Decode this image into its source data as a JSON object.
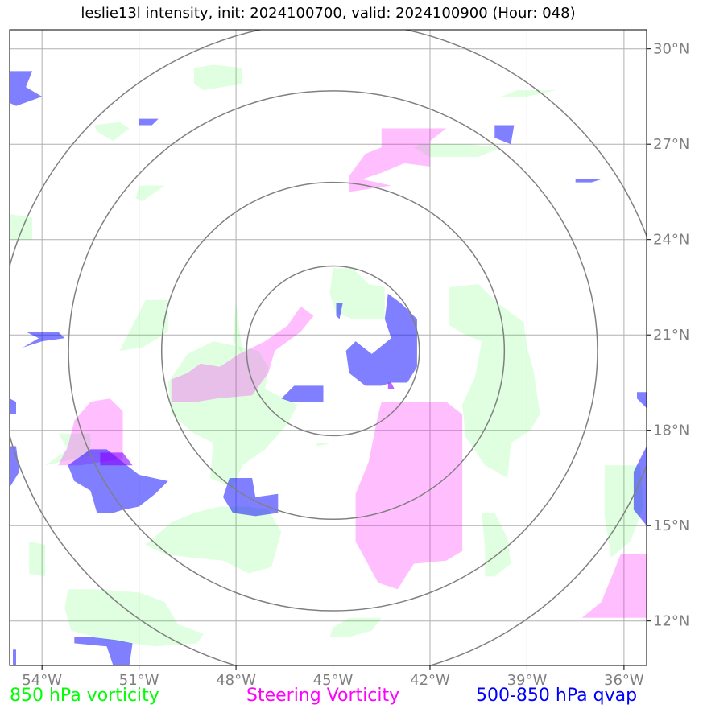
{
  "title": "leslie13l intensity, init: 2024100700, valid: 2024100900 (Hour: 048)",
  "colors": {
    "vorticity_850": "#00ff00",
    "steering_vorticity": "#ff00ff",
    "qvap_500_850": "#0000ff",
    "grid": "#b0b0b0",
    "range_rings": "#808080",
    "tick_labels": "#808080"
  },
  "map": {
    "lon_min": -55.0,
    "lon_max": -35.3,
    "lat_min": 10.6,
    "lat_max": 30.6,
    "storm_center": {
      "lon": -45.0,
      "lat": 20.5
    },
    "range_ring_radii_deg": [
      2.67,
      5.3,
      8.18,
      10.35
    ],
    "x_ticks": [
      {
        "lon": -54,
        "label": "54°W"
      },
      {
        "lon": -51,
        "label": "51°W"
      },
      {
        "lon": -48,
        "label": "48°W"
      },
      {
        "lon": -45,
        "label": "45°W"
      },
      {
        "lon": -42,
        "label": "42°W"
      },
      {
        "lon": -39,
        "label": "39°W"
      },
      {
        "lon": -36,
        "label": "36°W"
      }
    ],
    "y_ticks": [
      {
        "lat": 30,
        "label": "30°N"
      },
      {
        "lat": 27,
        "label": "27°N"
      },
      {
        "lat": 24,
        "label": "24°N"
      },
      {
        "lat": 21,
        "label": "21°N"
      },
      {
        "lat": 18,
        "label": "18°N"
      },
      {
        "lat": 15,
        "label": "15°N"
      },
      {
        "lat": 12,
        "label": "12°N"
      }
    ]
  },
  "fields": {
    "vorticity_850": [
      [
        [
          -49.3,
          29.4
        ],
        [
          -48.7,
          29.5
        ],
        [
          -47.8,
          29.4
        ],
        [
          -47.8,
          28.9
        ],
        [
          -49.0,
          28.7
        ],
        [
          -49.3,
          28.9
        ]
      ],
      [
        [
          -39.3,
          28.7
        ],
        [
          -38.1,
          28.7
        ],
        [
          -39.0,
          28.5
        ],
        [
          -39.8,
          28.5
        ]
      ],
      [
        [
          -52.4,
          27.6
        ],
        [
          -51.6,
          27.7
        ],
        [
          -51.3,
          27.5
        ],
        [
          -51.8,
          27.1
        ],
        [
          -52.3,
          27.4
        ]
      ],
      [
        [
          -42.3,
          27.0
        ],
        [
          -40.8,
          27.0
        ],
        [
          -39.8,
          26.9
        ],
        [
          -40.5,
          26.6
        ],
        [
          -42.0,
          26.6
        ],
        [
          -42.5,
          26.9
        ]
      ],
      [
        [
          -51.0,
          25.7
        ],
        [
          -50.2,
          25.7
        ],
        [
          -50.9,
          25.2
        ],
        [
          -51.1,
          25.3
        ]
      ],
      [
        [
          -55.0,
          24.8
        ],
        [
          -54.3,
          24.7
        ],
        [
          -54.3,
          24.0
        ],
        [
          -55.0,
          24.0
        ]
      ],
      [
        [
          -45.0,
          23.1
        ],
        [
          -44.4,
          23.1
        ],
        [
          -43.9,
          22.6
        ],
        [
          -43.4,
          22.5
        ],
        [
          -43.4,
          21.5
        ],
        [
          -44.4,
          21.5
        ],
        [
          -44.9,
          21.7
        ],
        [
          -45.1,
          22.3
        ]
      ],
      [
        [
          -41.4,
          22.5
        ],
        [
          -40.5,
          22.6
        ],
        [
          -39.9,
          22.0
        ],
        [
          -39.1,
          21.4
        ],
        [
          -39.0,
          20.6
        ],
        [
          -38.8,
          19.9
        ],
        [
          -38.6,
          18.5
        ],
        [
          -38.9,
          18.0
        ],
        [
          -39.5,
          17.6
        ],
        [
          -39.6,
          16.5
        ],
        [
          -40.3,
          16.9
        ],
        [
          -40.9,
          17.8
        ],
        [
          -41.0,
          18.8
        ],
        [
          -40.6,
          19.7
        ],
        [
          -40.4,
          20.8
        ],
        [
          -40.9,
          21.0
        ],
        [
          -41.4,
          21.3
        ]
      ],
      [
        [
          -50.8,
          22.1
        ],
        [
          -50.1,
          22.1
        ],
        [
          -50.1,
          21.1
        ],
        [
          -50.9,
          20.6
        ],
        [
          -51.6,
          20.5
        ],
        [
          -51.3,
          21.1
        ]
      ],
      [
        [
          -48.0,
          22.1
        ],
        [
          -47.8,
          20.4
        ],
        [
          -48.1,
          20.8
        ]
      ],
      [
        [
          -49.5,
          20.4
        ],
        [
          -48.7,
          20.8
        ],
        [
          -47.3,
          20.5
        ],
        [
          -47.0,
          20.0
        ],
        [
          -47.1,
          19.3
        ],
        [
          -46.1,
          18.8
        ],
        [
          -46.4,
          18.2
        ],
        [
          -47.1,
          17.4
        ],
        [
          -47.8,
          16.9
        ],
        [
          -48.1,
          16.2
        ],
        [
          -48.8,
          16.5
        ],
        [
          -48.7,
          17.6
        ],
        [
          -49.3,
          17.9
        ],
        [
          -50.0,
          18.5
        ],
        [
          -50.1,
          19.5
        ]
      ],
      [
        [
          -45.5,
          17.6
        ],
        [
          -45.0,
          17.6
        ],
        [
          -45.5,
          17.5
        ]
      ],
      [
        [
          -53.5,
          17.9
        ],
        [
          -52.5,
          17.9
        ],
        [
          -52.5,
          17.2
        ],
        [
          -53.9,
          16.9
        ],
        [
          -53.2,
          17.4
        ]
      ],
      [
        [
          -36.6,
          16.9
        ],
        [
          -35.5,
          16.9
        ],
        [
          -35.4,
          15.6
        ],
        [
          -35.8,
          14.5
        ],
        [
          -36.4,
          14.0
        ],
        [
          -36.6,
          15.3
        ],
        [
          -36.6,
          16.0
        ]
      ],
      [
        [
          -48.5,
          15.6
        ],
        [
          -47.6,
          15.6
        ],
        [
          -47.0,
          15.5
        ],
        [
          -46.6,
          14.8
        ],
        [
          -46.9,
          13.7
        ],
        [
          -47.6,
          13.5
        ],
        [
          -48.4,
          13.9
        ],
        [
          -49.4,
          14.0
        ],
        [
          -50.2,
          14.1
        ],
        [
          -50.8,
          14.4
        ],
        [
          -50.0,
          15.1
        ],
        [
          -49.3,
          15.4
        ]
      ],
      [
        [
          -40.4,
          15.4
        ],
        [
          -40.0,
          15.4
        ],
        [
          -39.6,
          14.6
        ],
        [
          -39.5,
          13.8
        ],
        [
          -40.0,
          13.4
        ],
        [
          -40.3,
          13.4
        ],
        [
          -40.3,
          14.3
        ]
      ],
      [
        [
          -54.4,
          14.5
        ],
        [
          -53.9,
          14.4
        ],
        [
          -53.9,
          13.4
        ],
        [
          -54.4,
          13.5
        ]
      ],
      [
        [
          -53.2,
          13.0
        ],
        [
          -52.4,
          13.0
        ],
        [
          -51.0,
          12.9
        ],
        [
          -50.2,
          12.6
        ],
        [
          -49.8,
          11.9
        ],
        [
          -49.0,
          11.6
        ],
        [
          -49.2,
          11.3
        ],
        [
          -50.5,
          11.2
        ],
        [
          -52.0,
          11.4
        ],
        [
          -53.1,
          11.7
        ],
        [
          -53.3,
          12.4
        ]
      ],
      [
        [
          -44.5,
          12.1
        ],
        [
          -43.5,
          12.1
        ],
        [
          -43.8,
          11.7
        ],
        [
          -44.5,
          11.5
        ],
        [
          -45.1,
          11.5
        ],
        [
          -45.0,
          11.8
        ]
      ]
    ],
    "steering_vorticity": [
      [
        [
          -43.5,
          27.5
        ],
        [
          -41.5,
          27.5
        ],
        [
          -42.0,
          27.1
        ],
        [
          -42.0,
          26.3
        ],
        [
          -42.8,
          26.4
        ],
        [
          -43.5,
          26.1
        ],
        [
          -44.1,
          25.9
        ],
        [
          -43.2,
          25.7
        ],
        [
          -44.5,
          25.5
        ],
        [
          -44.5,
          26.0
        ],
        [
          -44.0,
          26.7
        ],
        [
          -43.5,
          26.9
        ]
      ],
      [
        [
          -47.9,
          20.4
        ],
        [
          -47.1,
          20.8
        ],
        [
          -46.4,
          21.3
        ],
        [
          -46.0,
          21.9
        ],
        [
          -45.6,
          21.6
        ],
        [
          -46.0,
          21.1
        ],
        [
          -46.8,
          20.5
        ],
        [
          -47.0,
          19.8
        ],
        [
          -47.5,
          19.1
        ],
        [
          -48.6,
          19.0
        ],
        [
          -49.2,
          18.9
        ],
        [
          -50.0,
          18.9
        ],
        [
          -50.0,
          19.6
        ],
        [
          -49.5,
          19.8
        ],
        [
          -49.1,
          20.1
        ],
        [
          -48.5,
          20.0
        ]
      ],
      [
        [
          -52.5,
          18.9
        ],
        [
          -51.9,
          19.0
        ],
        [
          -51.5,
          18.6
        ],
        [
          -51.5,
          17.1
        ],
        [
          -52.2,
          17.0
        ],
        [
          -52.8,
          16.9
        ],
        [
          -53.5,
          16.9
        ],
        [
          -53.2,
          17.5
        ],
        [
          -53.0,
          18.3
        ]
      ],
      [
        [
          -43.5,
          18.9
        ],
        [
          -41.5,
          18.9
        ],
        [
          -41.0,
          18.5
        ],
        [
          -41.0,
          14.2
        ],
        [
          -41.5,
          13.9
        ],
        [
          -42.5,
          13.8
        ],
        [
          -43.0,
          13.0
        ],
        [
          -43.6,
          13.2
        ],
        [
          -44.3,
          14.5
        ],
        [
          -44.3,
          16.0
        ],
        [
          -43.9,
          17.0
        ],
        [
          -43.6,
          18.5
        ]
      ],
      [
        [
          -36.1,
          14.1
        ],
        [
          -35.3,
          14.1
        ],
        [
          -35.3,
          12.1
        ],
        [
          -36.1,
          12.1
        ],
        [
          -37.3,
          12.1
        ],
        [
          -36.7,
          12.6
        ]
      ]
    ],
    "qvap_500_850": [
      [
        [
          -55.0,
          29.3
        ],
        [
          -54.3,
          29.3
        ],
        [
          -54.5,
          28.8
        ],
        [
          -54.0,
          28.5
        ],
        [
          -54.8,
          28.2
        ],
        [
          -55.0,
          28.3
        ]
      ],
      [
        [
          -51.0,
          27.8
        ],
        [
          -50.4,
          27.8
        ],
        [
          -50.6,
          27.6
        ],
        [
          -51.0,
          27.6
        ]
      ],
      [
        [
          -40.0,
          27.6
        ],
        [
          -39.4,
          27.6
        ],
        [
          -39.5,
          27.0
        ],
        [
          -40.0,
          27.2
        ]
      ],
      [
        [
          -37.5,
          25.9
        ],
        [
          -36.7,
          25.9
        ],
        [
          -37.0,
          25.8
        ],
        [
          -37.5,
          25.8
        ]
      ],
      [
        [
          -44.9,
          22.0
        ],
        [
          -44.7,
          22.0
        ],
        [
          -44.8,
          21.5
        ],
        [
          -44.9,
          21.6
        ]
      ],
      [
        [
          -54.5,
          21.1
        ],
        [
          -53.5,
          21.1
        ],
        [
          -53.3,
          20.9
        ],
        [
          -54.0,
          20.8
        ],
        [
          -54.6,
          20.6
        ],
        [
          -54.1,
          20.9
        ]
      ],
      [
        [
          -43.3,
          22.3
        ],
        [
          -42.9,
          22.0
        ],
        [
          -42.4,
          21.5
        ],
        [
          -42.4,
          20.0
        ],
        [
          -42.7,
          19.5
        ],
        [
          -43.2,
          19.5
        ],
        [
          -43.5,
          19.4
        ],
        [
          -44.0,
          19.4
        ],
        [
          -44.5,
          19.8
        ],
        [
          -44.6,
          20.5
        ],
        [
          -44.3,
          20.8
        ],
        [
          -43.8,
          20.4
        ],
        [
          -43.2,
          20.9
        ],
        [
          -43.4,
          21.5
        ]
      ],
      [
        [
          -46.2,
          19.4
        ],
        [
          -45.3,
          19.4
        ],
        [
          -45.3,
          18.9
        ],
        [
          -46.3,
          18.9
        ],
        [
          -46.6,
          19.0
        ]
      ],
      [
        [
          -55.0,
          19.0
        ],
        [
          -54.8,
          18.9
        ],
        [
          -54.8,
          18.5
        ],
        [
          -55.0,
          18.5
        ]
      ],
      [
        [
          -35.6,
          19.2
        ],
        [
          -35.3,
          19.2
        ],
        [
          -35.3,
          18.7
        ],
        [
          -35.6,
          19.0
        ]
      ],
      [
        [
          -52.5,
          17.4
        ],
        [
          -52.0,
          17.4
        ],
        [
          -51.5,
          17.0
        ],
        [
          -51.0,
          16.6
        ],
        [
          -50.1,
          16.4
        ],
        [
          -50.5,
          16.0
        ],
        [
          -51.0,
          15.6
        ],
        [
          -51.5,
          15.5
        ],
        [
          -51.8,
          15.4
        ],
        [
          -52.3,
          15.4
        ],
        [
          -52.5,
          16.1
        ],
        [
          -53.0,
          16.4
        ],
        [
          -53.2,
          16.9
        ]
      ],
      [
        [
          -48.2,
          16.5
        ],
        [
          -47.5,
          16.5
        ],
        [
          -47.4,
          15.9
        ],
        [
          -46.7,
          16.0
        ],
        [
          -46.7,
          15.4
        ],
        [
          -47.4,
          15.3
        ],
        [
          -48.1,
          15.4
        ],
        [
          -48.4,
          15.9
        ]
      ],
      [
        [
          -55.0,
          17.5
        ],
        [
          -54.8,
          17.5
        ],
        [
          -54.7,
          16.7
        ],
        [
          -55.0,
          16.2
        ]
      ],
      [
        [
          -35.3,
          17.5
        ],
        [
          -35.7,
          16.7
        ],
        [
          -35.7,
          15.5
        ],
        [
          -35.3,
          15.0
        ]
      ],
      [
        [
          -53.0,
          11.5
        ],
        [
          -52.5,
          11.5
        ],
        [
          -51.7,
          11.4
        ],
        [
          -51.2,
          11.3
        ],
        [
          -51.3,
          10.6
        ],
        [
          -51.8,
          10.6
        ],
        [
          -52.0,
          11.2
        ],
        [
          -53.0,
          11.3
        ]
      ],
      [
        [
          -54.9,
          11.1
        ],
        [
          -54.8,
          11.1
        ],
        [
          -54.8,
          10.6
        ],
        [
          -54.9,
          10.6
        ]
      ]
    ],
    "overlap": [
      [
        [
          -52.2,
          17.3
        ],
        [
          -51.5,
          17.3
        ],
        [
          -51.2,
          16.9
        ],
        [
          -52.2,
          16.9
        ]
      ],
      [
        [
          -43.3,
          19.5
        ],
        [
          -43.2,
          19.5
        ],
        [
          -43.1,
          19.3
        ],
        [
          -43.3,
          19.3
        ]
      ]
    ]
  },
  "legend": {
    "vorticity_850": "850 hPa vorticity",
    "steering_vorticity": "Steering Vorticity",
    "qvap_500_850": "500-850 hPa qvap"
  }
}
